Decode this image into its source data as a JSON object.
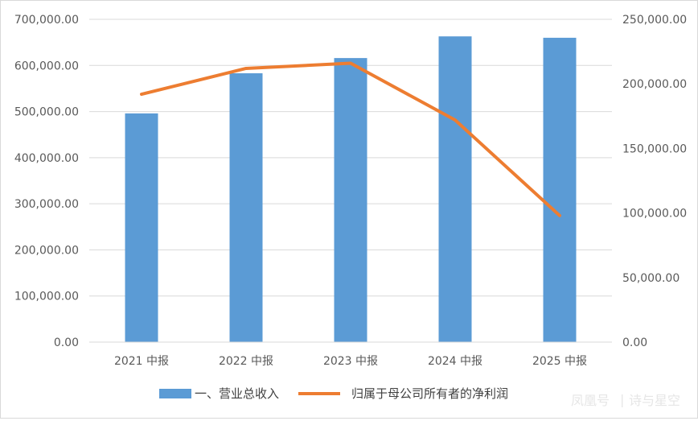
{
  "chart_data": {
    "type": "bar",
    "categories": [
      "2021 中报",
      "2022 中报",
      "2023 中报",
      "2024 中报",
      "2025 中报"
    ],
    "series": [
      {
        "name": "一、营业总收入",
        "type": "bar",
        "axis": "left",
        "color": "#5B9BD5",
        "values": [
          496000,
          583000,
          616000,
          663000,
          660000
        ]
      },
      {
        "name": "归属于母公司所有者的净利润",
        "type": "line",
        "axis": "right",
        "color": "#ED7D31",
        "values": [
          192000,
          212000,
          216000,
          172000,
          98000
        ]
      }
    ],
    "left_axis": {
      "ylim": [
        0,
        700000
      ],
      "ticks": [
        "0.00",
        "100,000.00",
        "200,000.00",
        "300,000.00",
        "400,000.00",
        "500,000.00",
        "600,000.00",
        "700,000.00"
      ]
    },
    "right_axis": {
      "ylim": [
        0,
        250000
      ],
      "ticks": [
        "0.00",
        "50,000.00",
        "100,000.00",
        "150,000.00",
        "200,000.00",
        "250,000.00"
      ]
    },
    "grid": true,
    "legend": "bottom"
  },
  "watermark": {
    "source": "凤凰号",
    "separator": "|",
    "author": "诗与星空"
  }
}
